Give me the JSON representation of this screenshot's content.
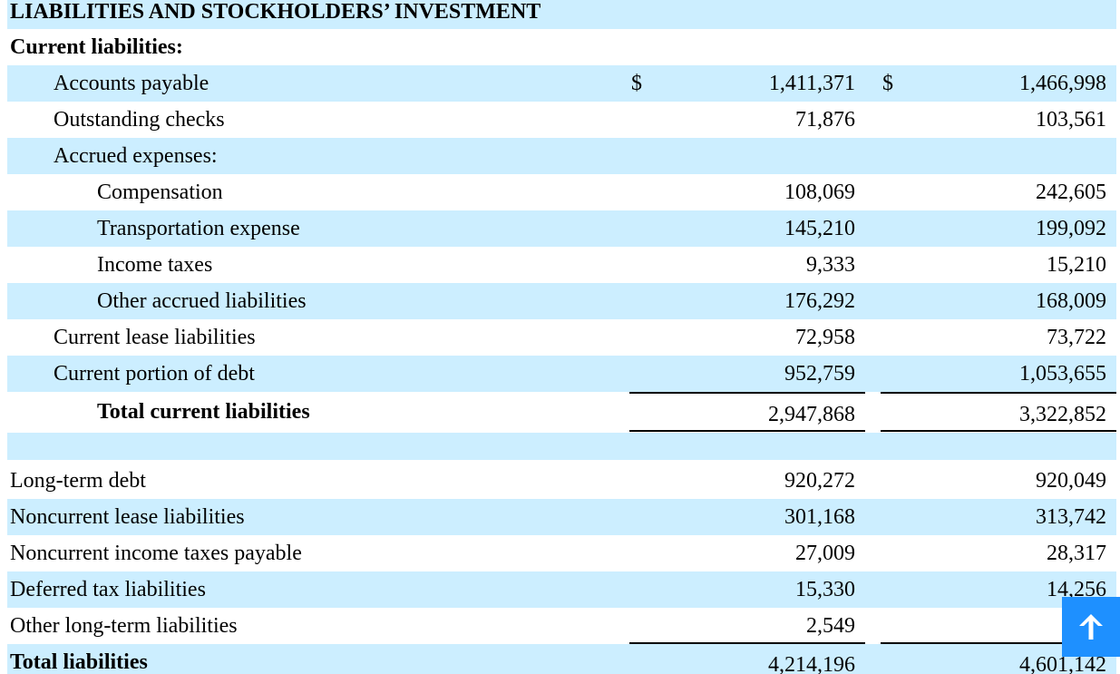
{
  "header": {
    "section_title": "LIABILITIES AND STOCKHOLDERS’ INVESTMENT",
    "subsection_title": "Current liabilities:"
  },
  "rows": {
    "accounts_payable": {
      "label": "Accounts payable",
      "cur_symbol": "$",
      "v1": "1,411,371",
      "prior_symbol": "$",
      "v2": "1,466,998"
    },
    "outstanding_checks": {
      "label": "Outstanding checks",
      "v1": "71,876",
      "v2": "103,561"
    },
    "accrued_expenses": {
      "label": "Accrued expenses:"
    },
    "compensation": {
      "label": "Compensation",
      "v1": "108,069",
      "v2": "242,605"
    },
    "transportation_expense": {
      "label": "Transportation expense",
      "v1": "145,210",
      "v2": "199,092"
    },
    "income_taxes": {
      "label": "Income taxes",
      "v1": "9,333",
      "v2": "15,210"
    },
    "other_accrued": {
      "label": "Other accrued liabilities",
      "v1": "176,292",
      "v2": "168,009"
    },
    "current_lease": {
      "label": "Current lease liabilities",
      "v1": "72,958",
      "v2": "73,722"
    },
    "current_debt": {
      "label": "Current portion of debt",
      "v1": "952,759",
      "v2": "1,053,655"
    },
    "total_current": {
      "label": "Total current liabilities",
      "v1": "2,947,868",
      "v2": "3,322,852"
    },
    "long_term_debt": {
      "label": "Long-term debt",
      "v1": "920,272",
      "v2": "920,049"
    },
    "noncurrent_lease": {
      "label": "Noncurrent lease liabilities",
      "v1": "301,168",
      "v2": "313,742"
    },
    "noncurrent_taxes": {
      "label": "Noncurrent income taxes payable",
      "v1": "27,009",
      "v2": "28,317"
    },
    "deferred_tax": {
      "label": "Deferred tax liabilities",
      "v1": "15,330",
      "v2": "14,256"
    },
    "other_long_term": {
      "label": "Other long-term liabilities",
      "v1": "2,549",
      "v2": ""
    },
    "total_liabilities": {
      "label": "Total liabilities",
      "v1": "4,214,196",
      "v2": "4,601,142"
    }
  },
  "scroll_top_button": {
    "icon": "arrow-up-icon"
  },
  "colors": {
    "row_shade": "#cceeff",
    "scroll_button": "#1e90ff"
  }
}
